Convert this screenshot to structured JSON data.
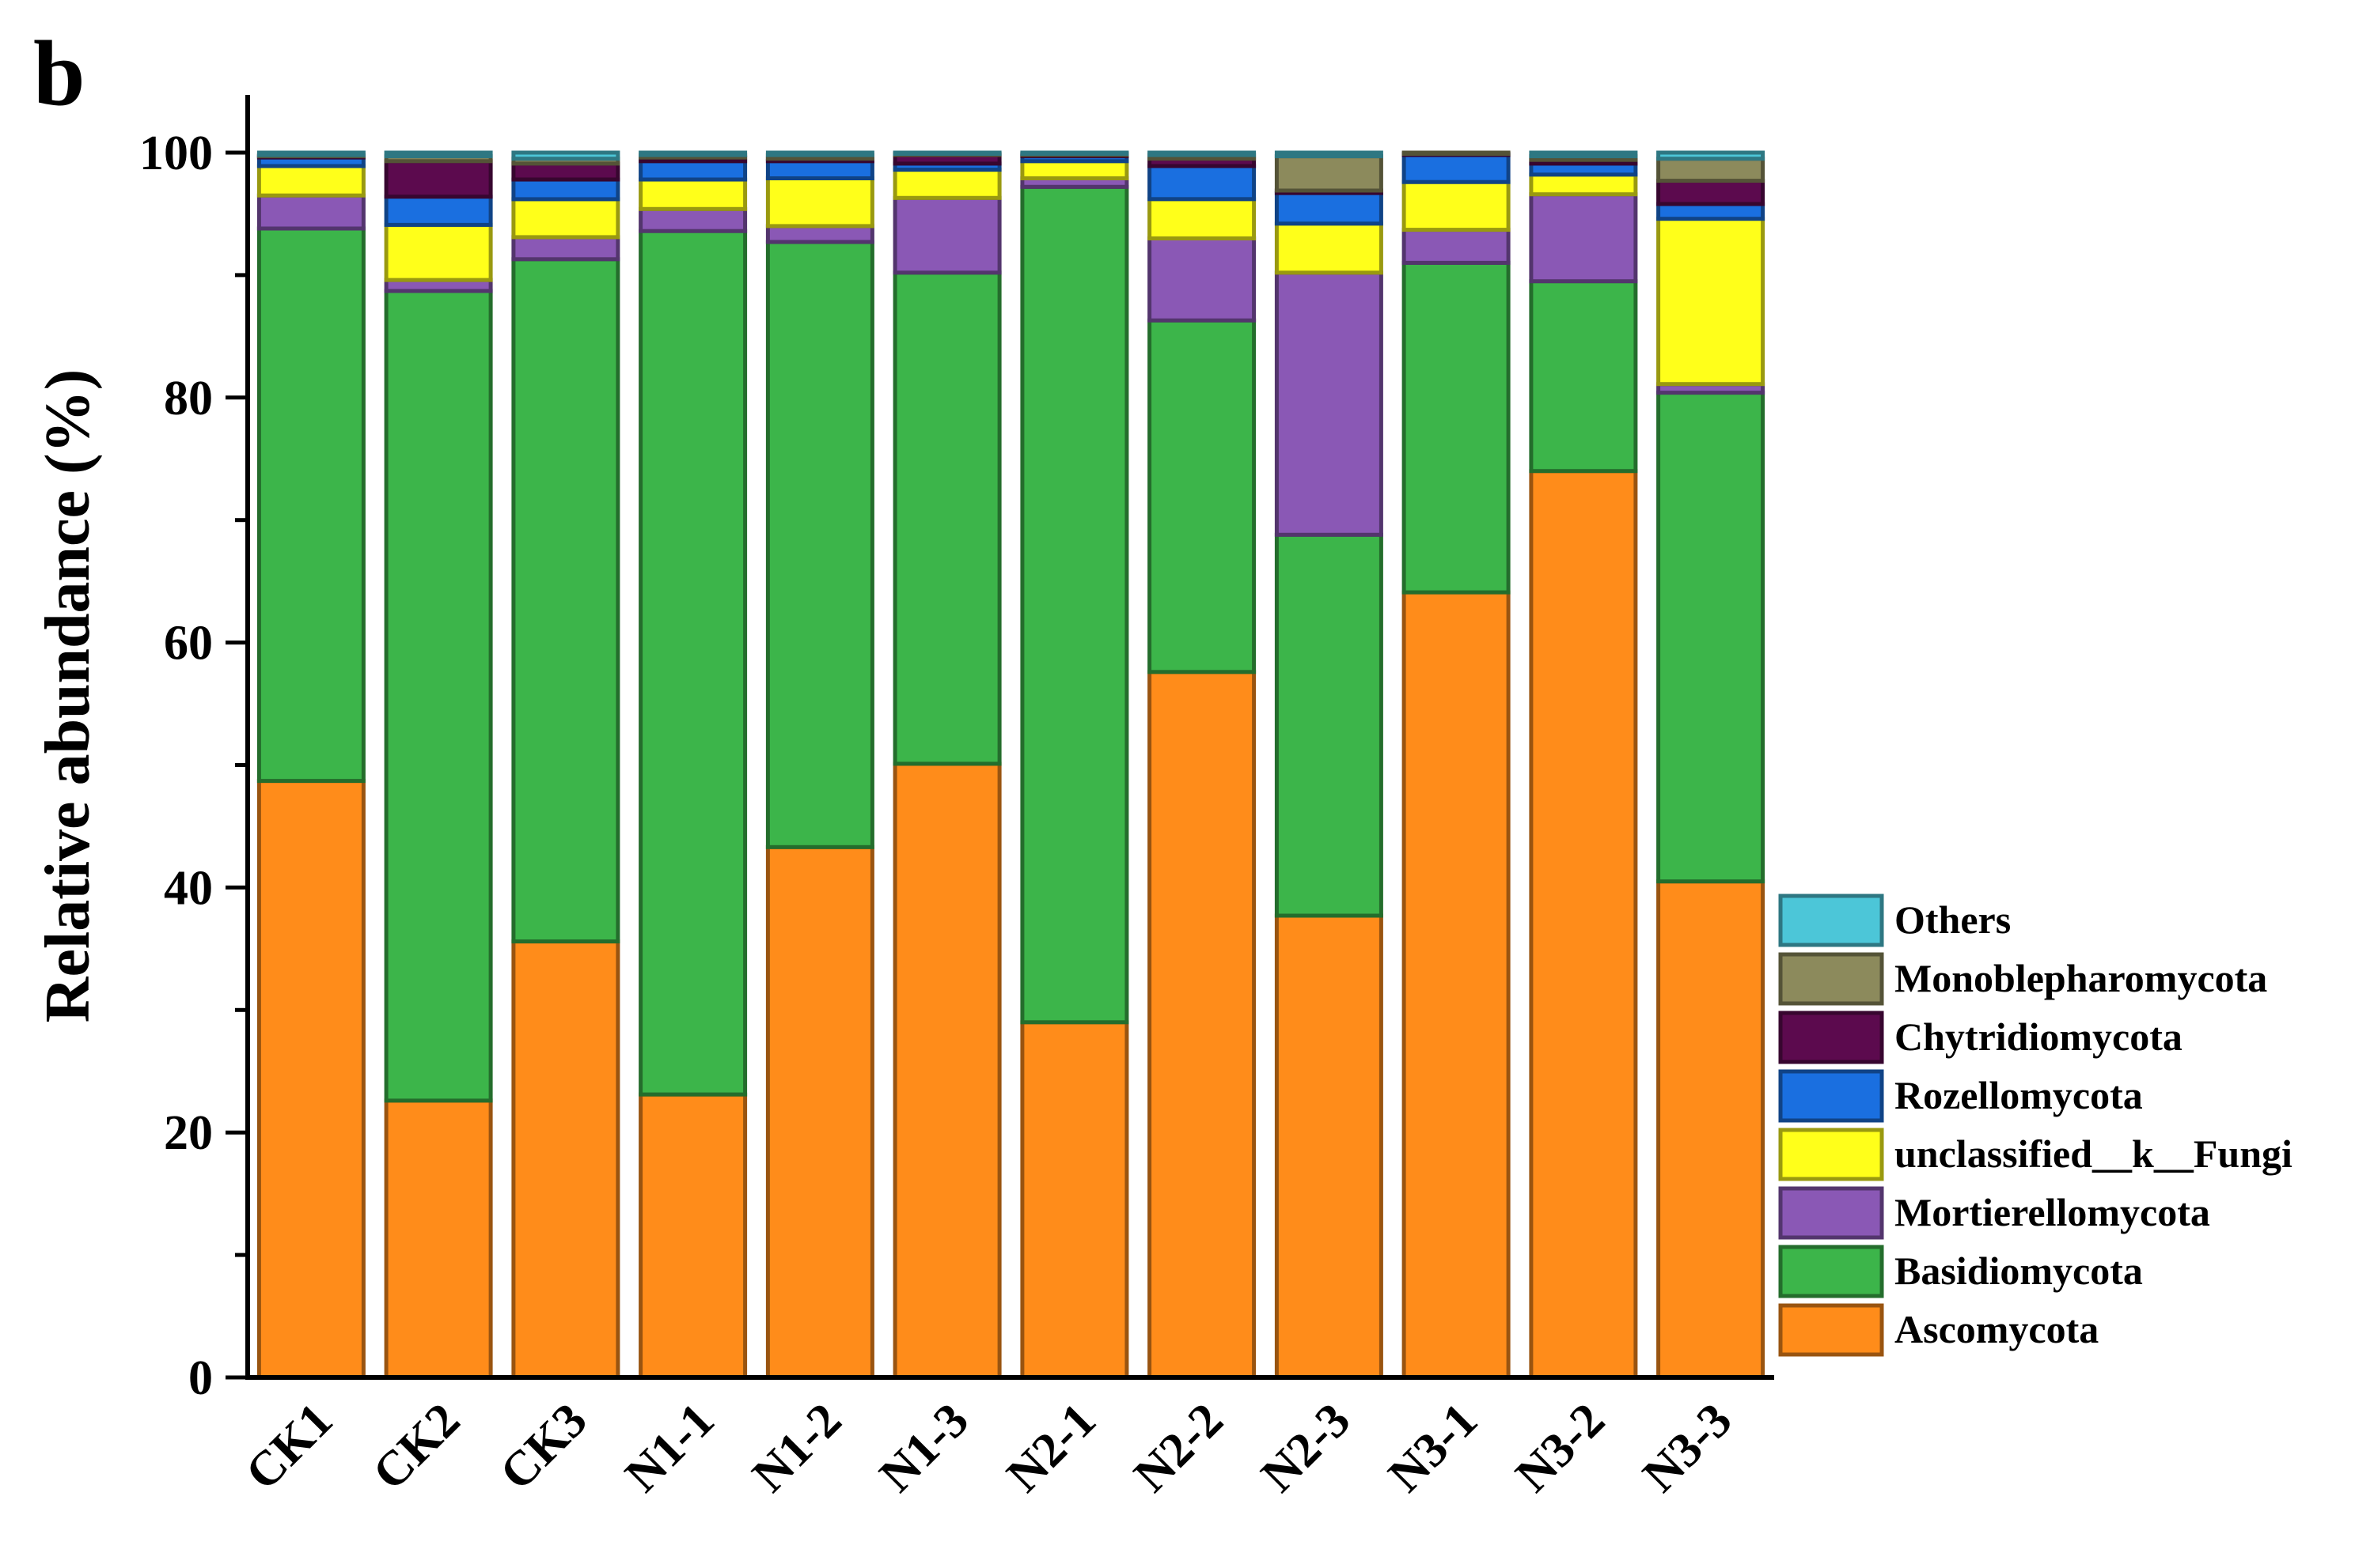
{
  "panel_label": "b",
  "chart_data": {
    "type": "bar",
    "stacked": true,
    "title": "",
    "xlabel": "",
    "ylabel": "Relative abundance (%)",
    "ylim": [
      0,
      100
    ],
    "yticks": [
      "0",
      "20",
      "40",
      "60",
      "80",
      "100"
    ],
    "categories": [
      "CK1",
      "CK2",
      "CK3",
      "N1-1",
      "N1-2",
      "N1-3",
      "N2-1",
      "N2-2",
      "N2-3",
      "N3-1",
      "N3-2",
      "N3-3"
    ],
    "legend_position": "bottom-right",
    "series": [
      {
        "name": "Ascomycota",
        "color": "#FF8C1A",
        "values": [
          48.7,
          22.6,
          35.6,
          23.1,
          43.3,
          50.1,
          29.0,
          57.6,
          37.7,
          64.1,
          74.0,
          40.5
        ]
      },
      {
        "name": "Basidiomycota",
        "color": "#3CB54A",
        "values": [
          45.1,
          66.1,
          55.7,
          70.5,
          49.4,
          40.1,
          68.2,
          28.7,
          31.1,
          26.9,
          15.5,
          39.9
        ]
      },
      {
        "name": "Mortierellomycota",
        "color": "#8A58B5",
        "values": [
          2.7,
          0.9,
          1.8,
          1.8,
          1.3,
          6.1,
          0.7,
          6.7,
          21.4,
          2.7,
          7.1,
          0.7
        ]
      },
      {
        "name": "unclassified__k__Fungi",
        "color": "#FFFF1A",
        "values": [
          2.4,
          4.5,
          3.1,
          2.4,
          3.9,
          2.3,
          1.4,
          3.2,
          4.0,
          3.9,
          1.6,
          13.5
        ]
      },
      {
        "name": "Rozellomycota",
        "color": "#1A6FE0",
        "values": [
          0.7,
          2.3,
          1.6,
          1.5,
          1.4,
          0.5,
          0.4,
          2.7,
          2.5,
          2.2,
          0.9,
          1.2
        ]
      },
      {
        "name": "Chytridiomycota",
        "color": "#5C0A4E",
        "values": [
          0.1,
          2.9,
          1.3,
          0.3,
          0.2,
          0.7,
          0.1,
          0.6,
          0.2,
          0.1,
          0.3,
          1.9
        ]
      },
      {
        "name": "Monoblepharomycota",
        "color": "#8C8A5C",
        "values": [
          0.1,
          0.4,
          0.4,
          0.2,
          0.3,
          0.1,
          0.1,
          0.3,
          2.8,
          0.1,
          0.3,
          1.8
        ]
      },
      {
        "name": "Others",
        "color": "#4CC6D8",
        "values": [
          0.2,
          0.3,
          0.5,
          0.2,
          0.2,
          0.1,
          0.1,
          0.2,
          0.3,
          0.0,
          0.3,
          0.5
        ]
      }
    ]
  }
}
